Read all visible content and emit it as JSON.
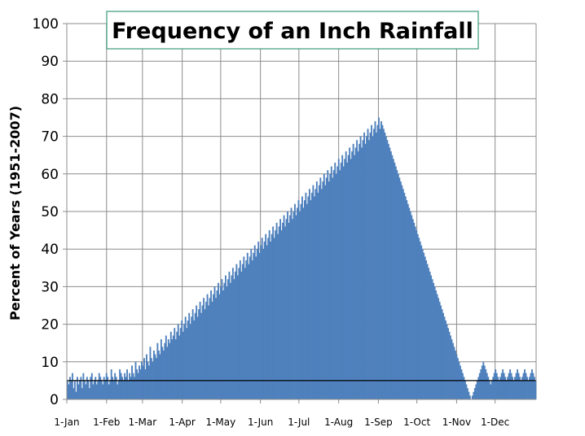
{
  "chart_data": {
    "type": "bar",
    "title": "Frequency of an Inch Rainfall",
    "ylabel": "Percent of Years (1951-2007)",
    "xlabel": "",
    "ylim": [
      0,
      100
    ],
    "yticks": [
      0,
      10,
      20,
      30,
      40,
      50,
      60,
      70,
      80,
      90,
      100
    ],
    "xticks": [
      {
        "label": "1-Jan",
        "day": 1
      },
      {
        "label": "1-Feb",
        "day": 32
      },
      {
        "label": "1-Mar",
        "day": 60
      },
      {
        "label": "1-Apr",
        "day": 91
      },
      {
        "label": "1-May",
        "day": 121
      },
      {
        "label": "1-Jun",
        "day": 152
      },
      {
        "label": "1-Jul",
        "day": 182
      },
      {
        "label": "1-Aug",
        "day": 213
      },
      {
        "label": "1-Sep",
        "day": 244
      },
      {
        "label": "1-Oct",
        "day": 274
      },
      {
        "label": "1-Nov",
        "day": 305
      },
      {
        "label": "1-Dec",
        "day": 335
      }
    ],
    "grid": true,
    "bar_color": "#4f81bd",
    "trend_color": "#000000",
    "series": [
      {
        "type": "bar",
        "values": [
          5,
          4,
          6,
          5,
          7,
          3,
          5,
          2,
          6,
          4,
          5,
          6,
          3,
          7,
          5,
          4,
          6,
          5,
          3,
          6,
          7,
          4,
          5,
          6,
          4,
          5,
          7,
          6,
          5,
          4,
          6,
          5,
          7,
          6,
          4,
          5,
          8,
          6,
          5,
          7,
          6,
          4,
          5,
          8,
          7,
          6,
          5,
          7,
          6,
          8,
          5,
          7,
          6,
          9,
          7,
          6,
          10,
          8,
          7,
          9,
          8,
          10,
          9,
          11,
          8,
          12,
          10,
          9,
          14,
          11,
          10,
          13,
          12,
          11,
          15,
          13,
          12,
          16,
          14,
          13,
          15,
          17,
          14,
          16,
          15,
          18,
          16,
          17,
          19,
          16,
          18,
          20,
          17,
          19,
          21,
          18,
          20,
          22,
          19,
          21,
          23,
          20,
          22,
          24,
          21,
          23,
          25,
          22,
          24,
          26,
          23,
          25,
          27,
          24,
          26,
          28,
          25,
          27,
          29,
          26,
          28,
          30,
          27,
          29,
          31,
          28,
          30,
          32,
          29,
          31,
          33,
          30,
          32,
          34,
          31,
          33,
          35,
          32,
          34,
          36,
          33,
          35,
          37,
          34,
          36,
          38,
          35,
          37,
          39,
          36,
          38,
          40,
          37,
          39,
          41,
          38,
          40,
          42,
          39,
          41,
          43,
          40,
          42,
          44,
          41,
          43,
          45,
          42,
          44,
          46,
          43,
          45,
          47,
          44,
          46,
          48,
          45,
          47,
          49,
          46,
          48,
          50,
          47,
          49,
          51,
          48,
          50,
          52,
          49,
          51,
          53,
          50,
          52,
          54,
          51,
          53,
          55,
          52,
          54,
          56,
          53,
          55,
          57,
          54,
          56,
          58,
          55,
          57,
          59,
          56,
          58,
          60,
          57,
          59,
          61,
          58,
          60,
          62,
          59,
          61,
          63,
          60,
          62,
          64,
          61,
          63,
          65,
          62,
          64,
          66,
          63,
          65,
          67,
          64,
          66,
          68,
          65,
          67,
          69,
          66,
          68,
          70,
          67,
          69,
          71,
          68,
          70,
          72,
          69,
          71,
          73,
          70,
          72,
          74,
          71,
          73,
          75,
          72,
          74,
          73,
          72,
          71,
          70,
          69,
          68,
          67,
          66,
          65,
          64,
          63,
          62,
          61,
          60,
          59,
          58,
          57,
          56,
          55,
          54,
          53,
          52,
          51,
          50,
          49,
          48,
          47,
          46,
          45,
          44,
          43,
          42,
          41,
          40,
          39,
          38,
          37,
          36,
          35,
          34,
          33,
          32,
          31,
          30,
          29,
          28,
          27,
          26,
          25,
          24,
          23,
          22,
          21,
          20,
          19,
          18,
          17,
          16,
          15,
          14,
          13,
          12,
          11,
          10,
          9,
          8,
          7,
          6,
          5,
          4,
          3,
          2,
          1,
          0,
          1,
          2,
          3,
          4,
          5,
          6,
          7,
          8,
          9,
          10,
          9,
          8,
          7,
          6,
          5,
          4,
          5,
          6,
          7,
          8,
          7,
          6,
          5,
          6,
          7,
          8,
          7,
          6,
          5,
          6,
          7,
          8,
          7,
          6,
          5,
          6,
          7,
          8,
          7,
          6,
          5,
          6,
          7,
          8,
          7,
          6,
          5,
          6,
          7,
          8,
          7,
          6,
          5
        ]
      },
      {
        "type": "line",
        "values": [
          5,
          5,
          5,
          5,
          5,
          5,
          5,
          5,
          5,
          5,
          5,
          5,
          5,
          5,
          5,
          5,
          5,
          5,
          5,
          5,
          5,
          5,
          5,
          5,
          5,
          5,
          5,
          5,
          5,
          5,
          5,
          5,
          5,
          5,
          5,
          5,
          5,
          5,
          5,
          5,
          5,
          5,
          5,
          5,
          5,
          5,
          5,
          5,
          5,
          5,
          5,
          5,
          5,
          5,
          5,
          5,
          5,
          5,
          5,
          5,
          5,
          5,
          5,
          5,
          5,
          5,
          5,
          5,
          5,
          5,
          5,
          5,
          5,
          5,
          5,
          5,
          5,
          5,
          5,
          5,
          5,
          5,
          5,
          5,
          5,
          5,
          5,
          5,
          5,
          5,
          5,
          5,
          5,
          5,
          5,
          5,
          5,
          5,
          5,
          5,
          5,
          5,
          5,
          5,
          5,
          5,
          5,
          5,
          5,
          5,
          5,
          5,
          5,
          5,
          5,
          5,
          5,
          5,
          5,
          5,
          5,
          5,
          5,
          5,
          5,
          5,
          5,
          5,
          5,
          5,
          5,
          5,
          5,
          5,
          5,
          5,
          5,
          5,
          5,
          5,
          5,
          5,
          5,
          5,
          5,
          5,
          5,
          5,
          5,
          5,
          5,
          5,
          5,
          5,
          5,
          5,
          5,
          5,
          5,
          5,
          5,
          5,
          5,
          5,
          5,
          5,
          5,
          5,
          5,
          5,
          5,
          5,
          5,
          5,
          5,
          5,
          5,
          5,
          5,
          5,
          5,
          5,
          5,
          5,
          5,
          5,
          5,
          5,
          5,
          5,
          5,
          5,
          5,
          5,
          5,
          5,
          5,
          5,
          5,
          5,
          5,
          5,
          5,
          5,
          5,
          5,
          5,
          5,
          5,
          5,
          5,
          5,
          5,
          5,
          5,
          5,
          5,
          5,
          5,
          5,
          5,
          5,
          5,
          5,
          5,
          5,
          5,
          5,
          5,
          5,
          5,
          5,
          5,
          5,
          5,
          5,
          5,
          5,
          5,
          5,
          5,
          5,
          5,
          5,
          5,
          5,
          5,
          5,
          5,
          5,
          5,
          5,
          5,
          5,
          5,
          5,
          5,
          5,
          5,
          5,
          5,
          5,
          5,
          5,
          5,
          5,
          5,
          5,
          5,
          5,
          5,
          5,
          5,
          5,
          5,
          5,
          5,
          5,
          5,
          5,
          5,
          5,
          5,
          5,
          5,
          5,
          5,
          5,
          5,
          5,
          5,
          5,
          5,
          5,
          5,
          5,
          5,
          5,
          5,
          5,
          5,
          5,
          5,
          5,
          5,
          5,
          5,
          5,
          5,
          5,
          5,
          5,
          5,
          5,
          5,
          5,
          5,
          5,
          5,
          5,
          5,
          5,
          5,
          5,
          5,
          5,
          5,
          5,
          5,
          5,
          5,
          5,
          5,
          5,
          5,
          5,
          5,
          5,
          5,
          5,
          5,
          5,
          5,
          5,
          5,
          5,
          5,
          5,
          5,
          5,
          5,
          5,
          5,
          5,
          5,
          5,
          5,
          5,
          5,
          5,
          5,
          5,
          5,
          5,
          5,
          5,
          5,
          5,
          5,
          5,
          5,
          5,
          5,
          5,
          5,
          5,
          5,
          5,
          5,
          5,
          5,
          5,
          5,
          5,
          5,
          5,
          5,
          5,
          5,
          5,
          5,
          5,
          5,
          5,
          5,
          5,
          5,
          5,
          5,
          5,
          5,
          5,
          5,
          5,
          5,
          5,
          5,
          5,
          5,
          5,
          5,
          5,
          5,
          5,
          5,
          5,
          5,
          5,
          5,
          5,
          5,
          5,
          5,
          5,
          5,
          5,
          5,
          5,
          5,
          5,
          5,
          5,
          5,
          5,
          5,
          5
        ]
      }
    ]
  }
}
